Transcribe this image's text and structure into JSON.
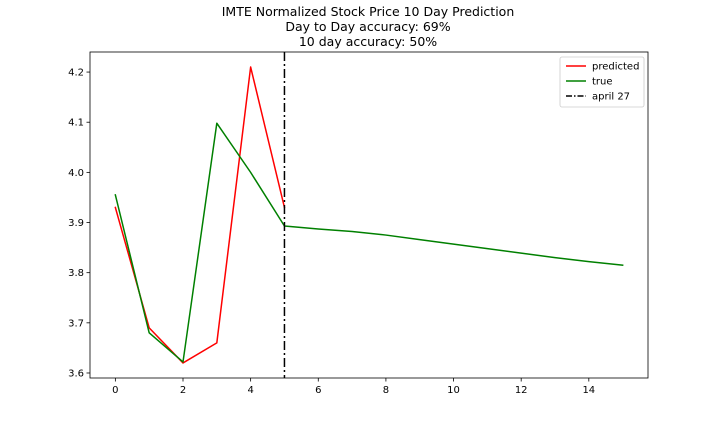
{
  "chart_data": {
    "type": "line",
    "title_lines": [
      "IMTE Normalized Stock Price 10 Day Prediction",
      "Day to Day accuracy: 69%",
      "10 day accuracy: 50%"
    ],
    "xlabel": "",
    "ylabel": "",
    "xlim": [
      -0.75,
      15.75
    ],
    "ylim": [
      3.59,
      4.24
    ],
    "xticks": [
      0,
      2,
      4,
      6,
      8,
      10,
      12,
      14
    ],
    "yticks": [
      3.6,
      3.7,
      3.8,
      3.9,
      4.0,
      4.1,
      4.2
    ],
    "xtick_labels": [
      "0",
      "2",
      "4",
      "6",
      "8",
      "10",
      "12",
      "14"
    ],
    "ytick_labels": [
      "3.6",
      "3.7",
      "3.8",
      "3.9",
      "4.0",
      "4.1",
      "4.2"
    ],
    "grid": false,
    "legend_position": "top-right",
    "series": [
      {
        "name": "predicted",
        "color": "#ff0000",
        "x": [
          0,
          1,
          2,
          3,
          4,
          5
        ],
        "y": [
          3.93,
          3.69,
          3.62,
          3.66,
          4.21,
          3.93
        ]
      },
      {
        "name": "true",
        "color": "#008000",
        "x": [
          0,
          1,
          2,
          3,
          4,
          5,
          6,
          7,
          8,
          9,
          10,
          11,
          12,
          13,
          14,
          15
        ],
        "y": [
          3.955,
          3.68,
          3.622,
          4.098,
          4.0,
          3.893,
          3.887,
          3.882,
          3.875,
          3.866,
          3.857,
          3.848,
          3.839,
          3.83,
          3.822,
          3.815
        ]
      }
    ],
    "vline": {
      "name": "april 27",
      "x": 5,
      "color": "#000000",
      "style": "dash-dot"
    }
  }
}
